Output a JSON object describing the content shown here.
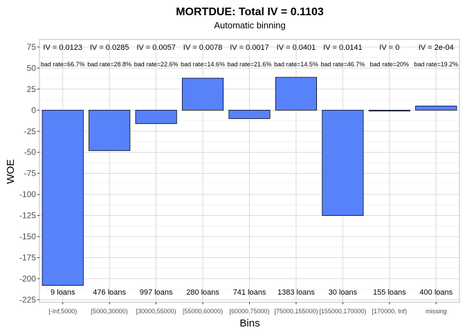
{
  "chart_data": {
    "type": "bar",
    "title": "MORTDUE: Total IV = 0.1103",
    "subtitle": "Automatic binning",
    "xlabel": "Bins",
    "ylabel": "WOE",
    "ylim": [
      -228,
      84
    ],
    "yticks": [
      75,
      50,
      25,
      0,
      -25,
      -50,
      -75,
      -100,
      -125,
      -150,
      -175,
      -200,
      -225
    ],
    "grid": true,
    "legend": "none",
    "categories": [
      "[-Inf,5000)",
      "[5000,30000)",
      "[30000,55000)",
      "[55000,60000)",
      "[60000,75000)",
      "[75000,155000)",
      "[155000,170000)",
      "[170000, Inf)",
      "missing"
    ],
    "values": [
      -208,
      -48,
      -16,
      38,
      -10,
      39,
      -125,
      -1,
      5
    ],
    "iv_labels": [
      "IV = 0.0123",
      "IV = 0.0285",
      "IV = 0.0057",
      "IV = 0.0078",
      "IV = 0.0017",
      "IV = 0.0401",
      "IV = 0.0141",
      "IV = 0",
      "IV = 2e-04"
    ],
    "bad_rate_labels": [
      "bad rate=66.7%",
      "bad rate=28.8%",
      "bad rate=22.6%",
      "bad rate=14.6%",
      "bad rate=21.6%",
      "bad rate=14.5%",
      "bad rate=46.7%",
      "bad rate=20%",
      "bad rate=19.2%"
    ],
    "count_labels": [
      "9 loans",
      "476 loans",
      "997 loans",
      "280 loans",
      "741 loans",
      "1383 loans",
      "30 loans",
      "155 loans",
      "400 loans"
    ]
  },
  "colors": {
    "bar_fill": "#5882FA",
    "bar_stroke": "#000000",
    "grid_major": "#d9d9d9",
    "grid_minor": "#ebebeb",
    "panel_border": "#bdbdbd"
  }
}
